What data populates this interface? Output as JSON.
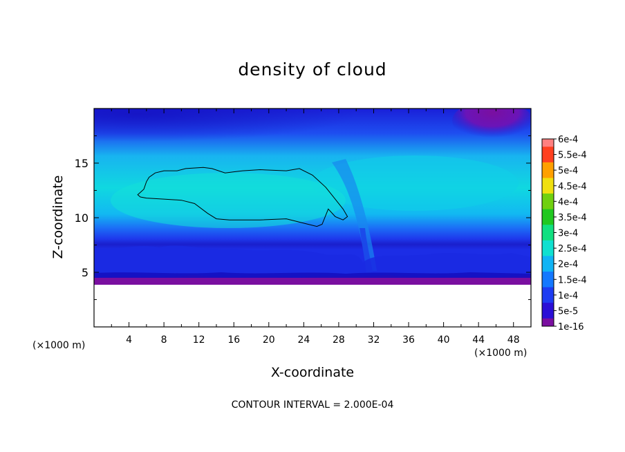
{
  "chart_data": {
    "type": "heatmap",
    "title": "density of cloud",
    "xlabel": "X-coordinate",
    "ylabel": "Z-coordinate",
    "x_unit": "(×1000 m)",
    "x_ticks": [
      4,
      8,
      12,
      16,
      20,
      24,
      28,
      32,
      36,
      40,
      44,
      48
    ],
    "y_ticks": [
      5,
      10,
      15
    ],
    "xlim": [
      0,
      50
    ],
    "ylim": [
      0,
      20
    ],
    "colorbar": {
      "labels": [
        "1e-16",
        "5e-5",
        "1e-4",
        "1.5e-4",
        "2e-4",
        "2.5e-4",
        "3e-4",
        "3.5e-4",
        "4e-4",
        "4.5e-4",
        "5e-4",
        "5.5e-4",
        "6e-4"
      ],
      "colors": [
        "#7a0fa0",
        "#2a0fd6",
        "#1e3cf2",
        "#1478ff",
        "#10b4f5",
        "#10e0d0",
        "#10e080",
        "#20c820",
        "#70d010",
        "#f0e010",
        "#ffa000",
        "#ff4020",
        "#ff8080"
      ]
    },
    "contour_interval": "CONTOUR INTERVAL = 2.000E-04",
    "contour_level": "2e-4",
    "contour_outline": [
      [
        5,
        12.1
      ],
      [
        5.7,
        12.6
      ],
      [
        6,
        13.3
      ],
      [
        6.3,
        13.7
      ],
      [
        7,
        14.1
      ],
      [
        8,
        14.3
      ],
      [
        9.5,
        14.3
      ],
      [
        10.5,
        14.5
      ],
      [
        12.5,
        14.6
      ],
      [
        13.5,
        14.5
      ],
      [
        15,
        14.1
      ],
      [
        16,
        14.2
      ],
      [
        17,
        14.3
      ],
      [
        19,
        14.4
      ],
      [
        22,
        14.3
      ],
      [
        23.5,
        14.5
      ],
      [
        25,
        13.9
      ],
      [
        26.5,
        12.8
      ],
      [
        27.5,
        11.8
      ],
      [
        28.5,
        10.8
      ],
      [
        29,
        10.1
      ],
      [
        28.5,
        9.8
      ],
      [
        27.6,
        10.1
      ],
      [
        26.8,
        10.8
      ],
      [
        26.1,
        9.4
      ],
      [
        25.5,
        9.2
      ],
      [
        24.5,
        9.4
      ],
      [
        22,
        9.9
      ],
      [
        19,
        9.8
      ],
      [
        15.5,
        9.8
      ],
      [
        14,
        9.9
      ],
      [
        13,
        10.4
      ],
      [
        11.5,
        11.3
      ],
      [
        10,
        11.6
      ],
      [
        8,
        11.7
      ],
      [
        6,
        11.8
      ],
      [
        5.3,
        11.9
      ],
      [
        5,
        12.1
      ]
    ],
    "grid": false,
    "legend": "right"
  }
}
